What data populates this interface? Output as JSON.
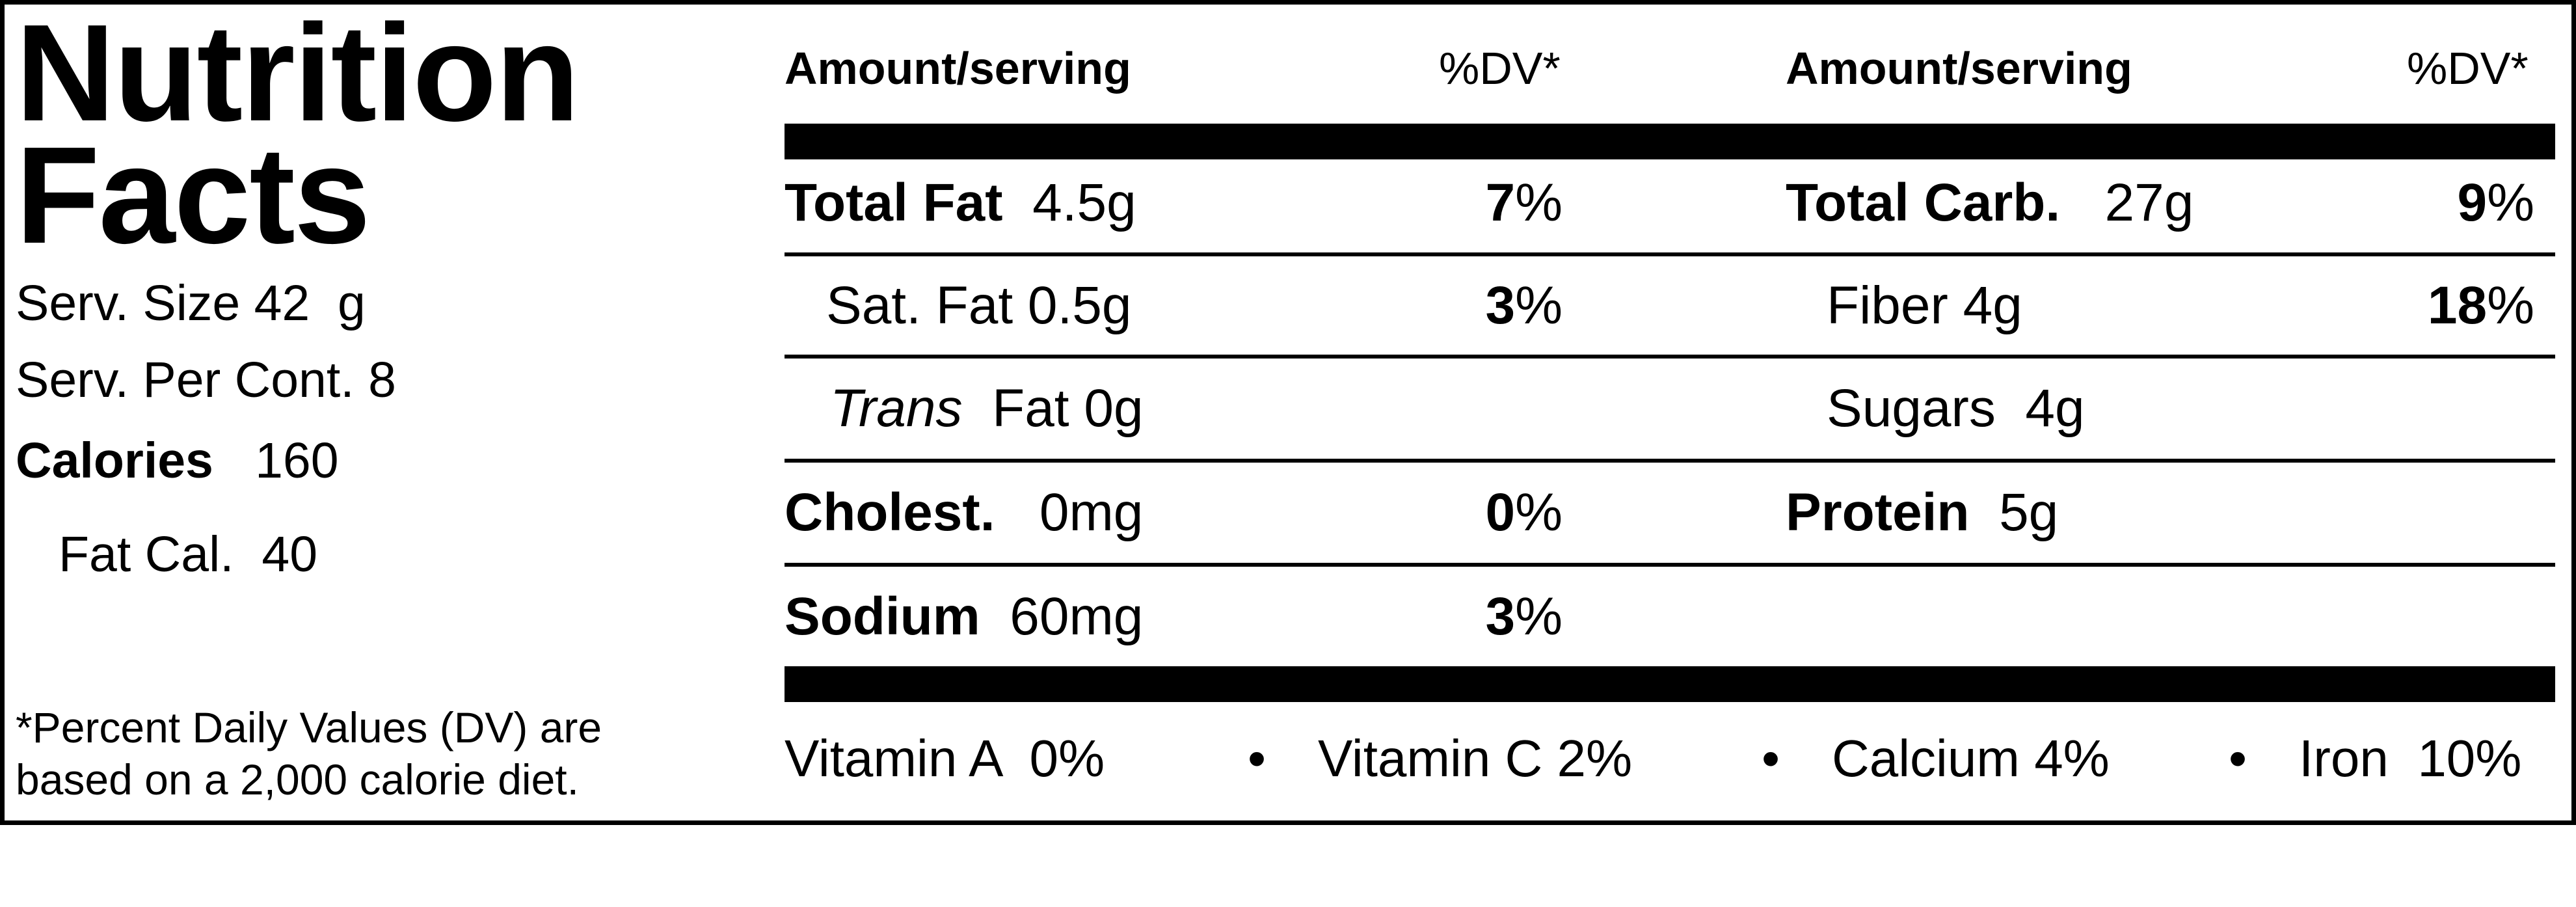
{
  "title": {
    "line1": "Nutrition",
    "line2": "Facts"
  },
  "serving": {
    "size_label": "Serv. Size",
    "size_value": "42  g",
    "per_cont_label": "Serv. Per Cont.",
    "per_cont_value": "8",
    "calories_label": "Calories",
    "calories_value": "160",
    "fat_cal_label": "Fat Cal.",
    "fat_cal_value": "40"
  },
  "footnote": {
    "line1": "*Percent Daily Values (DV) are",
    "line2": "based on a 2,000 calorie diet."
  },
  "headers": {
    "left_amount": "Amount/serving",
    "left_dv": "%DV*",
    "right_amount": "Amount/serving",
    "right_dv": "%DV*"
  },
  "left_rows": [
    {
      "name": "Total Fat",
      "amount": "4.5g",
      "dv_num": "7",
      "dv_unit": "%"
    },
    {
      "name": "Sat. Fat",
      "amount": "0.5g",
      "dv_num": "3",
      "dv_unit": "%"
    },
    {
      "name_italic": "Trans",
      "name": "Fat",
      "amount": "0g"
    },
    {
      "name": "Cholest.",
      "amount": "0mg",
      "dv_num": "0",
      "dv_unit": "%"
    },
    {
      "name": "Sodium",
      "amount": "60mg",
      "dv_num": "3",
      "dv_unit": "%"
    }
  ],
  "right_rows": [
    {
      "name": "Total Carb.",
      "amount": "27g",
      "dv_num": "9",
      "dv_unit": "%"
    },
    {
      "name": "Fiber",
      "amount": "4g",
      "dv_num": "18",
      "dv_unit": "%"
    },
    {
      "name": "Sugars",
      "amount": "4g"
    },
    {
      "name": "Protein",
      "amount": "5g"
    }
  ],
  "vitamins": [
    {
      "name": "Vitamin A",
      "value": "0%"
    },
    {
      "name": "Vitamin C",
      "value": "2%"
    },
    {
      "name": "Calcium",
      "value": "4%"
    },
    {
      "name": "Iron",
      "value": "10%"
    }
  ],
  "bullet": "•"
}
